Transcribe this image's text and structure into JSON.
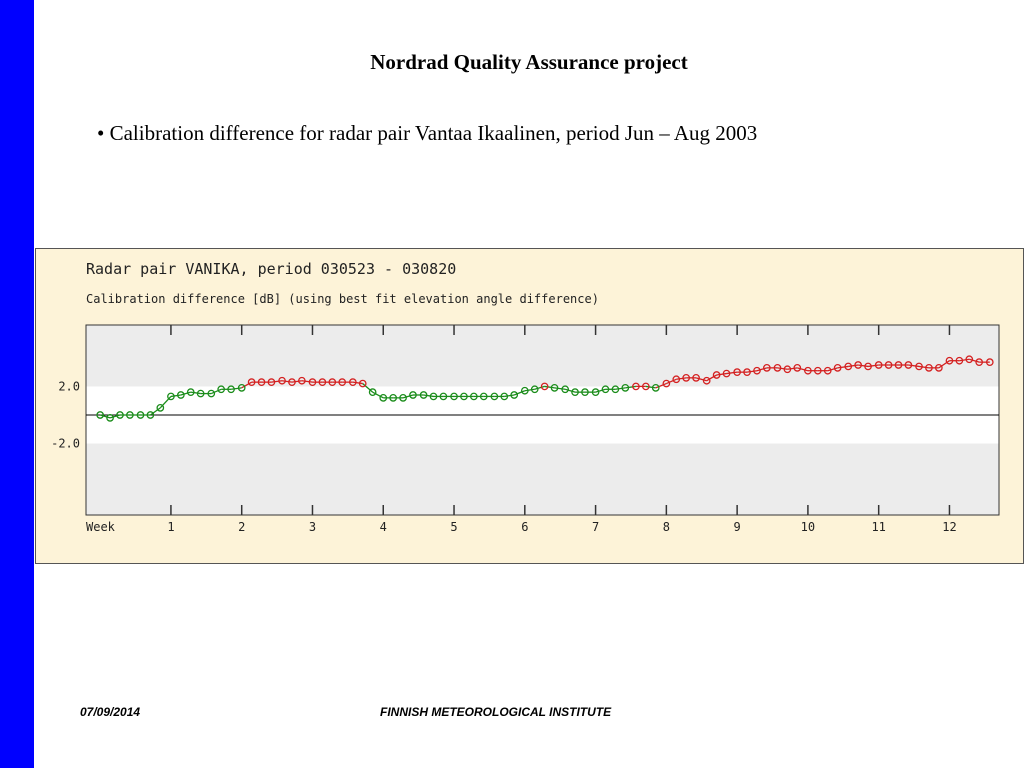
{
  "slide": {
    "title": "Nordrad Quality Assurance project",
    "bullet": "• Calibration difference for radar pair Vantaa Ikaalinen, period Jun – Aug 2003"
  },
  "footer": {
    "date": "07/09/2014",
    "organization": "FINNISH METEOROLOGICAL INSTITUTE"
  },
  "colors": {
    "sidebar": "#0000ff",
    "panel_background": "#fdf3d8",
    "plot_band": "#ececec",
    "series_below_2": "#1a8c1a",
    "series_above_2": "#d42020"
  },
  "chart_data": {
    "type": "line",
    "title": "Radar pair VANIKA, period 030523 - 030820",
    "subtitle": "Calibration difference [dB] (using best fit elevation angle difference)",
    "xlabel": "Week",
    "x_ticks": [
      "1",
      "2",
      "3",
      "4",
      "5",
      "6",
      "7",
      "8",
      "9",
      "10",
      "11",
      "12"
    ],
    "y_ticks": [
      "2.0",
      "-2.0"
    ],
    "ylim": [
      -7.0,
      6.3
    ],
    "xlim": [
      -0.2,
      12.7
    ],
    "reference_line": 0,
    "threshold": 2.0,
    "grid": false,
    "series": [
      {
        "x": [
          0.0,
          0.14,
          0.28,
          0.42,
          0.57,
          0.71,
          0.85,
          1.0,
          1.14,
          1.28,
          1.42,
          1.57,
          1.71,
          1.85,
          2.0,
          2.14,
          2.28,
          2.42,
          2.57,
          2.71,
          2.85,
          3.0,
          3.14,
          3.28,
          3.42,
          3.57,
          3.71,
          3.85,
          4.0,
          4.14,
          4.28,
          4.42,
          4.57,
          4.71,
          4.85,
          5.0,
          5.14,
          5.28,
          5.42,
          5.57,
          5.71,
          5.85,
          6.0,
          6.14,
          6.28,
          6.42,
          6.57,
          6.71,
          6.85,
          7.0,
          7.14,
          7.28,
          7.42,
          7.57,
          7.71,
          7.85,
          8.0,
          8.14,
          8.28,
          8.42,
          8.57,
          8.71,
          8.85,
          9.0,
          9.14,
          9.28,
          9.42,
          9.57,
          9.71,
          9.85,
          10.0,
          10.14,
          10.28,
          10.42,
          10.57,
          10.71,
          10.85,
          11.0,
          11.14,
          11.28,
          11.42,
          11.57,
          11.71,
          11.85,
          12.0,
          12.14,
          12.28,
          12.42,
          12.57
        ],
        "y": [
          0.0,
          -0.2,
          0.0,
          0.0,
          0.0,
          0.0,
          0.5,
          1.3,
          1.4,
          1.6,
          1.5,
          1.5,
          1.8,
          1.8,
          1.9,
          2.3,
          2.3,
          2.3,
          2.4,
          2.3,
          2.4,
          2.3,
          2.3,
          2.3,
          2.3,
          2.3,
          2.2,
          1.6,
          1.2,
          1.2,
          1.2,
          1.4,
          1.4,
          1.3,
          1.3,
          1.3,
          1.3,
          1.3,
          1.3,
          1.3,
          1.3,
          1.4,
          1.7,
          1.8,
          2.0,
          1.9,
          1.8,
          1.6,
          1.6,
          1.6,
          1.8,
          1.8,
          1.9,
          2.0,
          2.0,
          1.9,
          2.2,
          2.5,
          2.6,
          2.6,
          2.4,
          2.8,
          2.9,
          3.0,
          3.0,
          3.1,
          3.3,
          3.3,
          3.2,
          3.3,
          3.1,
          3.1,
          3.1,
          3.3,
          3.4,
          3.5,
          3.4,
          3.5,
          3.5,
          3.5,
          3.5,
          3.4,
          3.3,
          3.3,
          3.8,
          3.8,
          3.9,
          3.7,
          3.7
        ]
      }
    ]
  }
}
